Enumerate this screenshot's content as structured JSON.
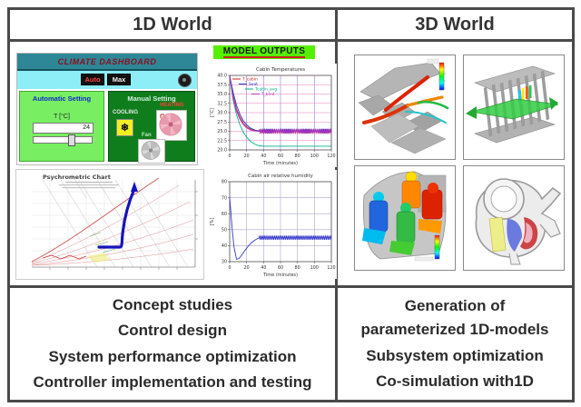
{
  "headers": {
    "left": "1D World",
    "right": "3D World"
  },
  "dashboard": {
    "title": "CLIMATE DASHBOARD",
    "auto_button": "Auto",
    "max_button": "Max",
    "auto_panel": {
      "title": "Automatic Setting",
      "temp_label": "T [°C]",
      "temp_value": "24"
    },
    "manual_panel": {
      "title": "Manual Setting",
      "cooling_label": "COOLING",
      "heating_label": "HEATING",
      "fan_label": "Fan",
      "snowflake_icon": "❄"
    }
  },
  "psychrometric": {
    "title": "Psychrometric Chart"
  },
  "model_outputs_label": "MODEL OUTPUTS",
  "chart_data": [
    {
      "type": "line",
      "title": "Cabin Temperatures",
      "xlabel": "Time (minutes)",
      "ylabel": "[°C]",
      "xlim": [
        0,
        120
      ],
      "ylim": [
        20,
        40
      ],
      "xticks": {
        "values": [
          0,
          20,
          40,
          60,
          80,
          100,
          120
        ],
        "labels": [
          "0",
          "20",
          "40",
          "60",
          "80",
          "100",
          "120"
        ]
      },
      "yticks": {
        "values": [
          20,
          22.5,
          25,
          27.5,
          30,
          32.5,
          35,
          37.5,
          40
        ],
        "labels": [
          "20.0",
          "22.5",
          "25.0",
          "27.5",
          "30.0",
          "32.5",
          "35.0",
          "37.5",
          "40.0"
        ]
      },
      "grid_color_h": "#e87fc0",
      "grid_color_v": "#8f7fd8",
      "legend_position": "top-left",
      "series": [
        {
          "name": "T_cabin",
          "color": "#cc2222",
          "x": [
            0,
            4,
            8,
            12,
            16,
            20,
            25,
            30,
            35
          ],
          "y": [
            40,
            34.5,
            31,
            28.8,
            27.2,
            26.2,
            25.5,
            25.1,
            25
          ],
          "osc": {
            "from": 35,
            "base": 25,
            "amp": 0.5,
            "period": 2
          }
        },
        {
          "name": "Seat",
          "color": "#2233cc",
          "x": [
            0,
            4,
            8,
            12,
            16,
            20,
            25,
            30,
            35
          ],
          "y": [
            40,
            35.5,
            32,
            29.6,
            27.9,
            26.7,
            25.8,
            25.3,
            25.1
          ],
          "osc": {
            "from": 35,
            "base": 25.1,
            "amp": 0.35,
            "period": 2
          }
        },
        {
          "name": "Tcabin_avg",
          "color": "#00b08a",
          "x": [
            0,
            4,
            8,
            12,
            16,
            20,
            25,
            30,
            35,
            40
          ],
          "y": [
            40,
            33.5,
            29.5,
            26.8,
            24.8,
            23.4,
            22.2,
            21.5,
            21.1,
            21
          ]
        },
        {
          "name": "T_blnd",
          "color": "#bb33bb",
          "x": [
            0,
            4,
            8,
            12,
            16,
            20,
            25,
            30,
            35
          ],
          "y": [
            40,
            34,
            30.5,
            28.3,
            26.8,
            25.9,
            25.3,
            25.1,
            25
          ],
          "osc": {
            "from": 35,
            "base": 25,
            "amp": 0.45,
            "period": 2.2
          }
        }
      ]
    },
    {
      "type": "line",
      "title": "Cabin air relative humidity",
      "xlabel": "Time (minutes)",
      "ylabel": "[%]",
      "xlim": [
        0,
        120
      ],
      "ylim": [
        30,
        80
      ],
      "xticks": {
        "values": [
          0,
          20,
          40,
          60,
          80,
          100,
          120
        ],
        "labels": [
          "0",
          "20",
          "40",
          "60",
          "80",
          "100",
          "120"
        ]
      },
      "yticks": {
        "values": [
          30,
          40,
          50,
          60,
          70,
          80
        ],
        "labels": [
          "30",
          "40",
          "50",
          "60",
          "70",
          "80"
        ]
      },
      "grid_color_h": "#a9a9cf",
      "grid_color_v": "#a9a9cf",
      "legend_position": "none",
      "series": [
        {
          "name": "Cabin RH",
          "color": "#3a3acc",
          "x": [
            0,
            1,
            3,
            5,
            8,
            11,
            14,
            18,
            22,
            26,
            30,
            35
          ],
          "y": [
            70,
            64,
            50,
            39.5,
            31.5,
            32,
            34,
            37,
            39.8,
            42,
            43.6,
            45
          ],
          "osc": {
            "from": 35,
            "base": 45,
            "amp": 1.3,
            "period": 2
          }
        }
      ]
    }
  ],
  "bottom": {
    "left_items": [
      "Concept studies",
      "Control design",
      "System performance optimization",
      "Controller implementation and testing"
    ],
    "right_items": [
      "Generation of\nparameterized 1D-models",
      "Subsystem optimization",
      "Co-simulation with1D"
    ]
  }
}
